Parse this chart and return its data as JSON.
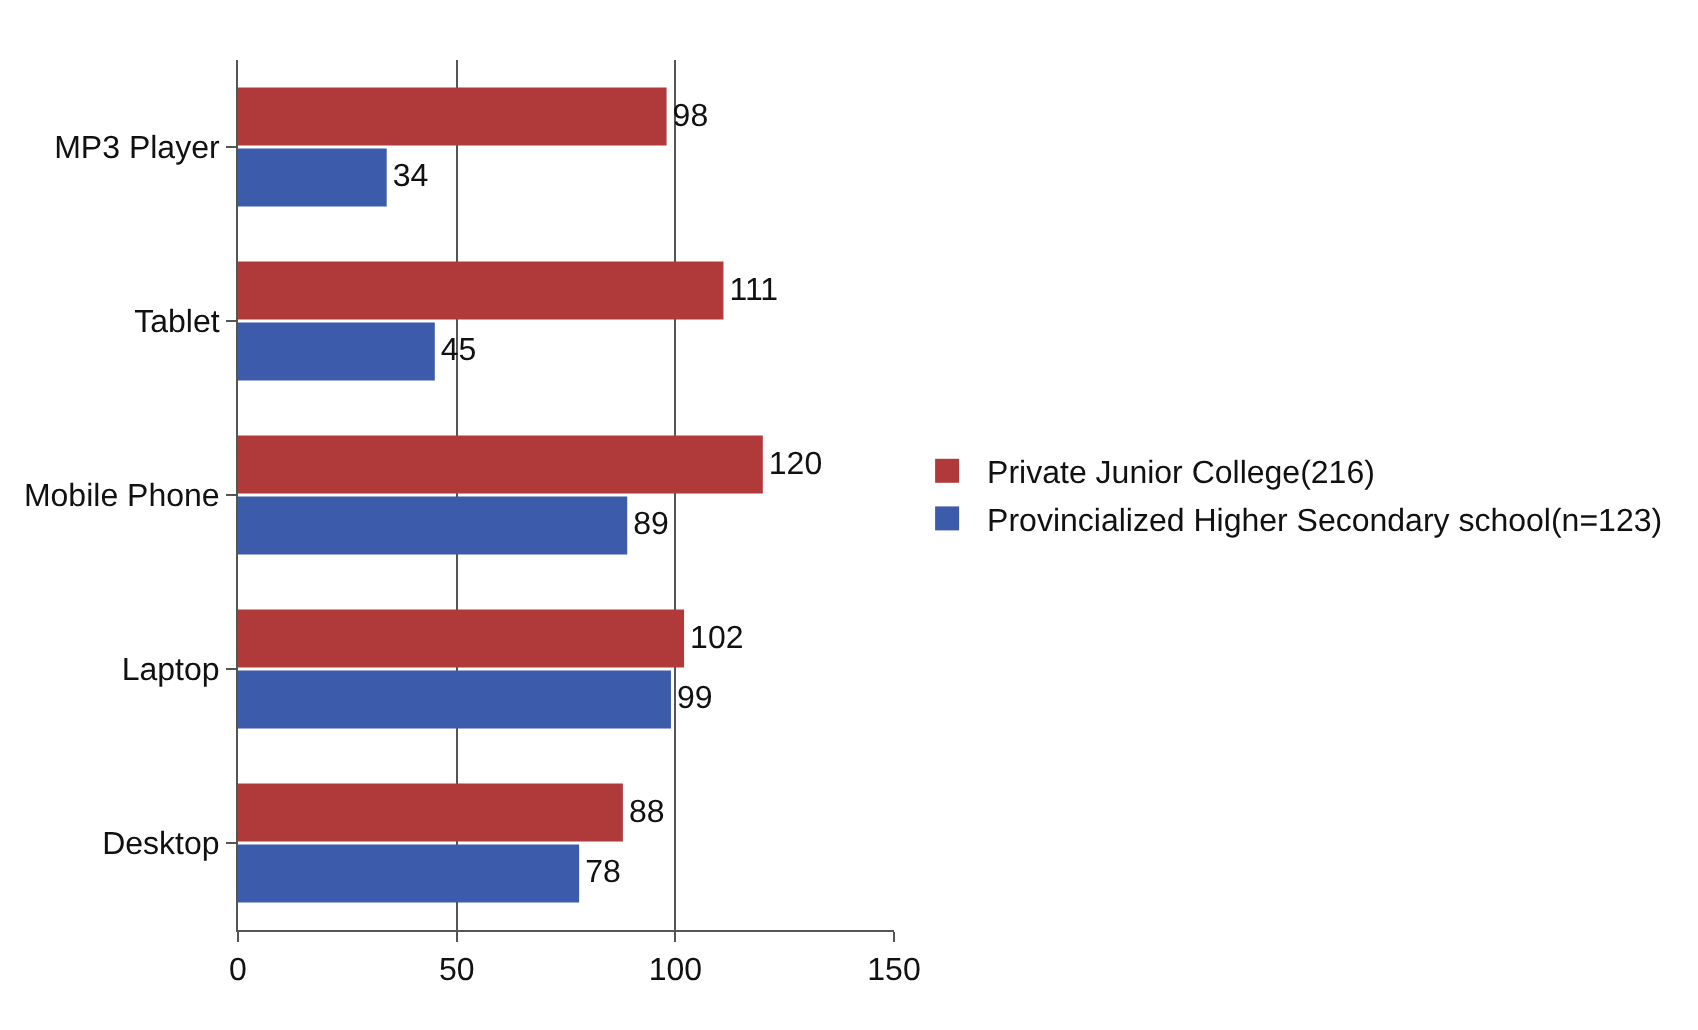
{
  "chart_data": {
    "type": "bar",
    "orientation": "horizontal",
    "categories": [
      "MP3 Player",
      "Tablet",
      "Mobile Phone",
      "Laptop",
      "Desktop"
    ],
    "series": [
      {
        "name": "Private Junior College(216)",
        "color": "#b03a3a",
        "values": [
          98,
          111,
          120,
          102,
          88
        ]
      },
      {
        "name": "Provincialized Higher Secondary school(n=123)",
        "color": "#3d5bab",
        "values": [
          34,
          45,
          89,
          99,
          78
        ]
      }
    ],
    "xlim": [
      0,
      150
    ],
    "xticks": [
      0,
      50,
      100,
      150
    ],
    "grid": "x",
    "legend": "right",
    "data_labels": true
  }
}
